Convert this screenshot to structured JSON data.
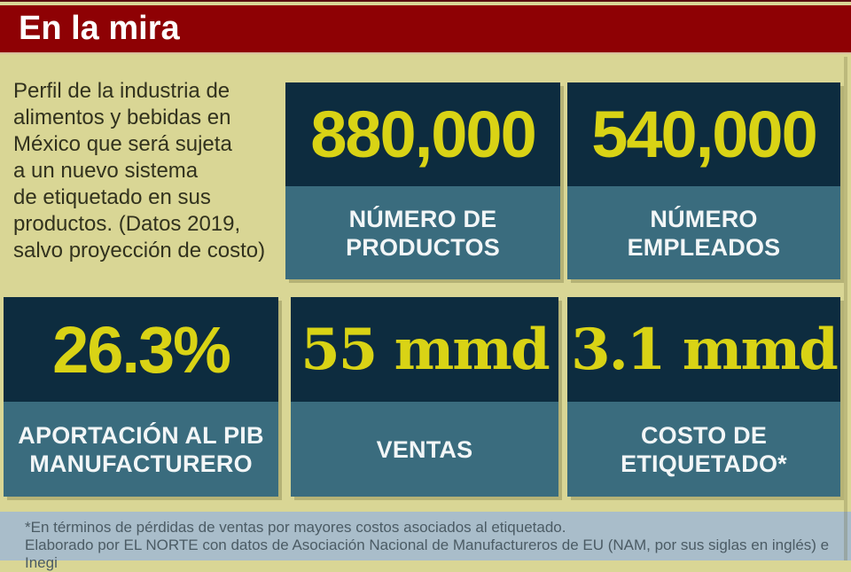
{
  "header": {
    "title": "En la mira"
  },
  "intro": "Perfil de la industria de\nalimentos y bebidas en\nMéxico que será sujeta\na un nuevo sistema\nde etiquetado en sus\nproductos. (Datos 2019,\nsalvo proyección de costo)",
  "stats": [
    {
      "value": "880,000",
      "label": "NÚMERO DE\nPRODUCTOS"
    },
    {
      "value": "540,000",
      "label": "NÚMERO\nEMPLEADOS"
    },
    {
      "value": "26.3%",
      "label": "APORTACIÓN AL PIB\nMANUFACTURERO"
    },
    {
      "value": "55 mmd",
      "label": "VENTAS"
    },
    {
      "value": "3.1 mmd",
      "label": "COSTO DE\nETIQUETADO*"
    }
  ],
  "footer": {
    "note": "*En términos de pérdidas de ventas por mayores costos asociados al etiquetado.",
    "credit": "Elaborado por EL NORTE con datos de Asociación Nacional de Manufactureros de EU (NAM, por sus siglas en inglés) e Inegi"
  },
  "colors": {
    "background_tan": "#d9d695",
    "header_red": "#8e0104",
    "top_line_maroon": "#5a0e10",
    "card_navy": "#0d2c3f",
    "card_teal": "#3a6c7e",
    "value_yellow": "#d9d315",
    "label_white": "#f2f6f7",
    "footer_band": "#a9bdca",
    "footer_text": "#4b5b64",
    "intro_text": "#32321e"
  },
  "chart_data": {
    "type": "table",
    "title": "En la mira",
    "subtitle": "Perfil de la industria de alimentos y bebidas en México que será sujeta a un nuevo sistema de etiquetado en sus productos. (Datos 2019, salvo proyección de costo)",
    "items": [
      {
        "label": "Número de productos",
        "value": 880000
      },
      {
        "label": "Número empleados",
        "value": 540000
      },
      {
        "label": "Aportación al PIB manufacturero",
        "value": "26.3%"
      },
      {
        "label": "Ventas",
        "value": "55 mmd"
      },
      {
        "label": "Costo de etiquetado*",
        "value": "3.1 mmd"
      }
    ],
    "footnote": "*En términos de pérdidas de ventas por mayores costos asociados al etiquetado.",
    "source": "Elaborado por EL NORTE con datos de Asociación Nacional de Manufactureros de EU (NAM, por sus siglas en inglés) e Inegi"
  }
}
